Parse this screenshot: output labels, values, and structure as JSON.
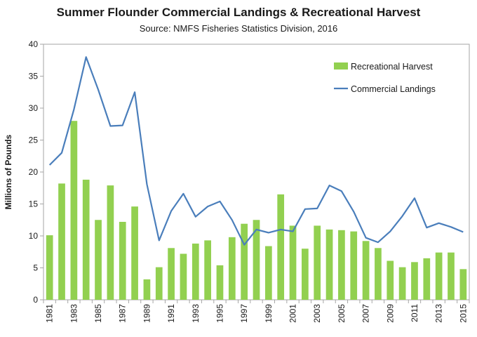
{
  "chart_data": {
    "type": "bar+line",
    "title": "Summer Flounder Commercial Landings & Recreational Harvest",
    "subtitle": "Source: NMFS Fisheries Statistics Division, 2016",
    "ylabel": "Millions of Pounds",
    "xlabel": "",
    "ylim": [
      0,
      40
    ],
    "yticks": [
      0,
      5,
      10,
      15,
      20,
      25,
      30,
      35,
      40
    ],
    "grid": false,
    "legend_position": "top-right",
    "x": [
      1981,
      1982,
      1983,
      1984,
      1985,
      1986,
      1987,
      1988,
      1989,
      1990,
      1991,
      1992,
      1993,
      1994,
      1995,
      1996,
      1997,
      1998,
      1999,
      2000,
      2001,
      2002,
      2003,
      2004,
      2005,
      2006,
      2007,
      2008,
      2009,
      2010,
      2011,
      2012,
      2013,
      2014,
      2015
    ],
    "xtick_labels": [
      "1981",
      "1983",
      "1985",
      "1987",
      "1989",
      "1991",
      "1993",
      "1995",
      "1997",
      "1999",
      "2001",
      "2003",
      "2005",
      "2007",
      "2009",
      "2011",
      "2013",
      "2015"
    ],
    "series": [
      {
        "name": "Recreational Harvest",
        "kind": "bar",
        "color": "#92d050",
        "values": [
          10.1,
          18.2,
          28.0,
          18.8,
          12.5,
          17.9,
          12.2,
          14.6,
          3.2,
          5.1,
          8.1,
          7.2,
          8.8,
          9.3,
          5.4,
          9.8,
          11.9,
          12.5,
          8.4,
          16.5,
          11.6,
          8.0,
          11.6,
          11.0,
          10.9,
          10.7,
          9.2,
          8.1,
          6.1,
          5.1,
          5.9,
          6.5,
          7.4,
          7.4,
          4.8
        ]
      },
      {
        "name": "Commercial Landings",
        "kind": "line",
        "color": "#4a7ebb",
        "values": [
          21.1,
          23.0,
          29.8,
          38.0,
          32.9,
          27.2,
          27.3,
          32.5,
          18.1,
          9.3,
          13.9,
          16.6,
          13.0,
          14.6,
          15.4,
          12.5,
          8.6,
          11.0,
          10.5,
          11.0,
          10.7,
          14.2,
          14.3,
          17.9,
          17.0,
          13.8,
          9.7,
          9.0,
          10.7,
          13.1,
          15.9,
          11.3,
          12.0,
          11.4,
          10.6
        ]
      }
    ]
  }
}
